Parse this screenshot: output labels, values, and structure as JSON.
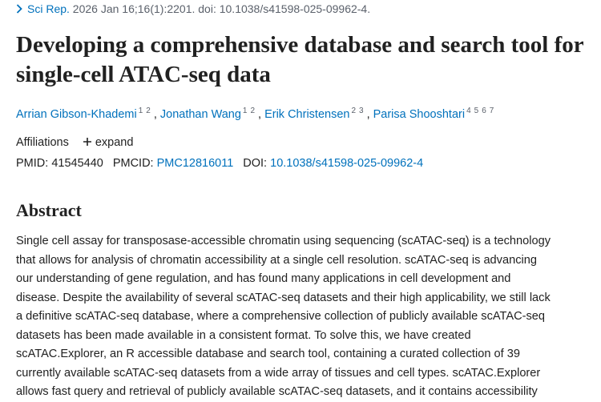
{
  "citation": {
    "journal": "Sci Rep.",
    "details": " 2026 Jan 16;16(1):2201. doi: 10.1038/s41598-025-09962-4."
  },
  "title": "Developing a comprehensive database and search tool for single-cell ATAC-seq data",
  "authors": [
    {
      "name": "Arrian Gibson-Khademi",
      "affiliations": [
        "1",
        "2"
      ]
    },
    {
      "name": "Jonathan Wang",
      "affiliations": [
        "1",
        "2"
      ]
    },
    {
      "name": "Erik Christensen",
      "affiliations": [
        "2",
        "3"
      ]
    },
    {
      "name": "Parisa Shooshtari",
      "affiliations": [
        "4",
        "5",
        "6",
        "7"
      ]
    }
  ],
  "affiliations": {
    "label": "Affiliations",
    "toggle": "expand"
  },
  "identifiers": [
    {
      "label": "PMID:",
      "value": "41545440"
    },
    {
      "label": "PMCID:",
      "value": "PMC12816011"
    },
    {
      "label": "DOI:",
      "value": "10.1038/s41598-025-09962-4"
    }
  ],
  "abstract": {
    "heading": "Abstract",
    "lines": [
      "Single cell assay for transposase-accessible chromatin using sequencing (scATAC-seq) is a technology",
      "that allows for analysis of chromatin accessibility at a single cell resolution. scATAC-seq is advancing",
      "our understanding of gene regulation, and has found many applications in cell development and",
      "disease. Despite the availability of several scATAC-seq datasets and their high applicability, we still lack",
      "a definitive scATAC-seq database, where a comprehensive collection of publicly available scATAC-seq",
      "datasets has been made available in a consistent format. To solve this, we have created",
      "scATAC.Explorer, an R accessible database and search tool, containing a curated collection of 39",
      "currently available scATAC-seq datasets from a wide array of tissues and cell types. scATAC.Explorer",
      "allows fast query and retrieval of publicly available scATAC-seq datasets, and it contains accessibility"
    ]
  }
}
